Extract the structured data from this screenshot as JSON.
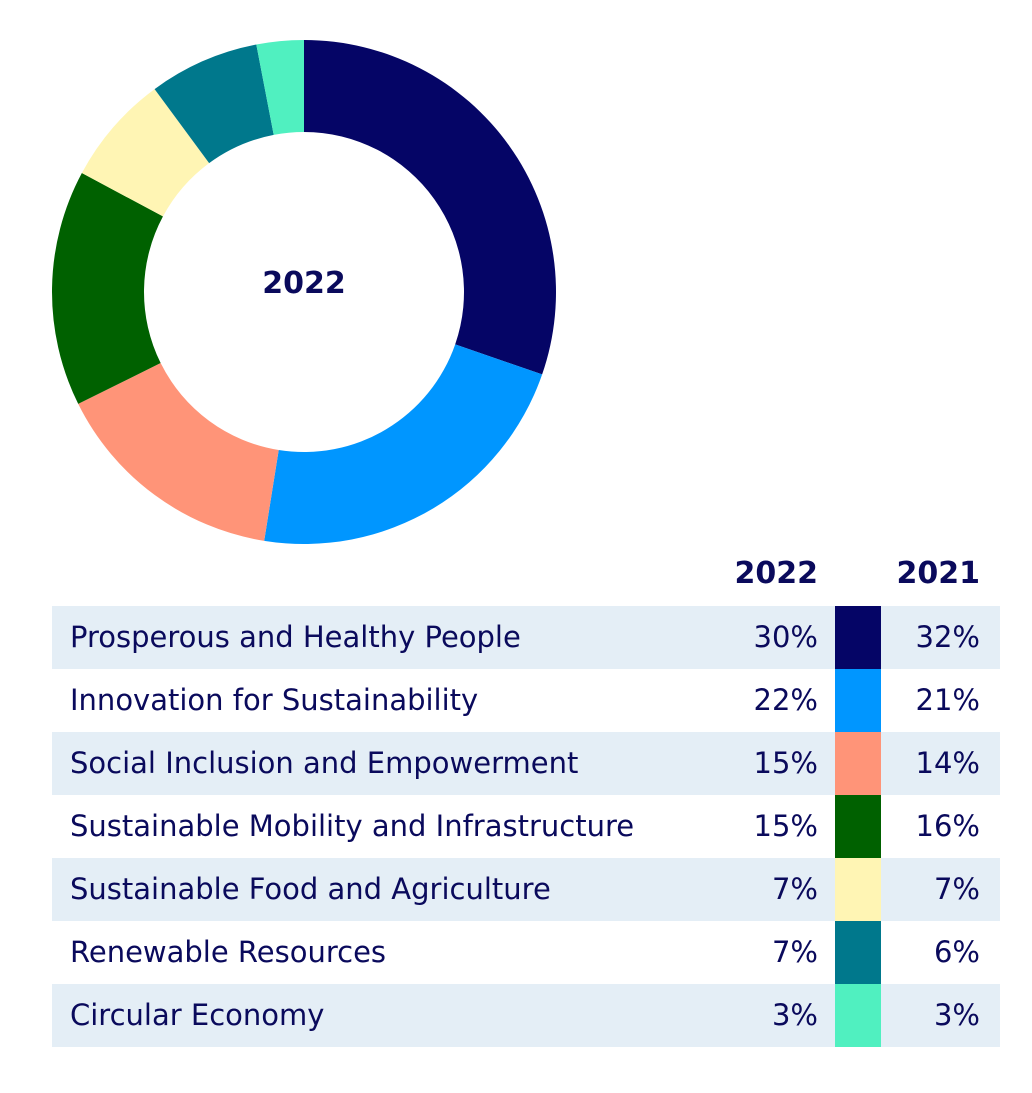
{
  "chart_data": {
    "type": "pie",
    "variant": "donut",
    "title": "",
    "center_label": "2022",
    "columns": [
      "2022",
      "2021"
    ],
    "categories": [
      "Prosperous and Healthy People",
      "Innovation for Sustainability",
      "Social Inclusion and Empowerment",
      "Sustainable Mobility and Infrastructure",
      "Sustainable Food and Agriculture",
      "Renewable Resources",
      "Circular Economy"
    ],
    "series": [
      {
        "name": "2022",
        "values": [
          30,
          22,
          15,
          15,
          7,
          7,
          3
        ],
        "labels": [
          "30%",
          "22%",
          "15%",
          "15%",
          "7%",
          "7%",
          "3%"
        ]
      },
      {
        "name": "2021",
        "values": [
          32,
          21,
          14,
          16,
          7,
          6,
          3
        ],
        "labels": [
          "32%",
          "21%",
          "14%",
          "16%",
          "7%",
          "6%",
          "3%"
        ]
      }
    ],
    "colors": [
      "#050566",
      "#0096ff",
      "#ff9478",
      "#006100",
      "#fff5b4",
      "#00788c",
      "#50f0c0"
    ]
  }
}
